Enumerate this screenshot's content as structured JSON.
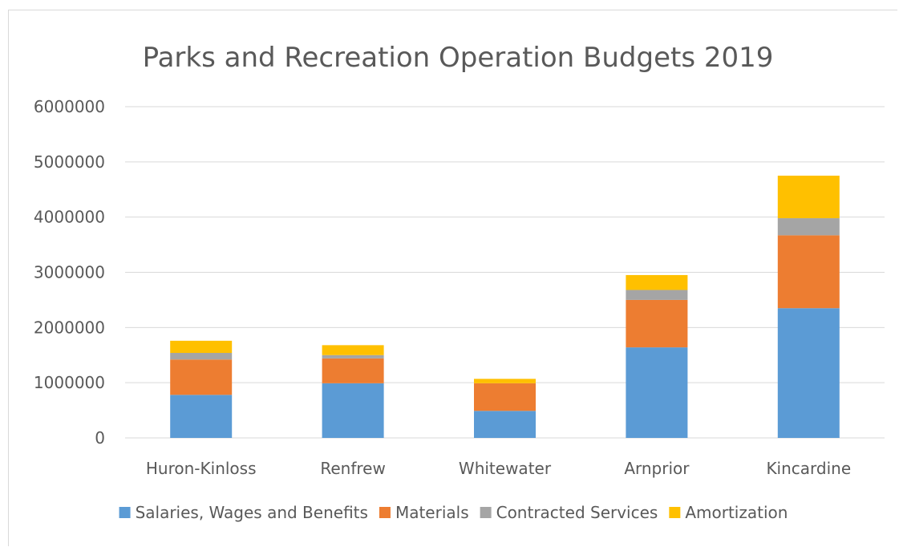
{
  "chart_data": {
    "type": "bar",
    "stacked": true,
    "title": "Parks and Recreation Operation Budgets 2019",
    "xlabel": "",
    "ylabel": "",
    "ylim": [
      0,
      6000000
    ],
    "yticks": [
      0,
      1000000,
      2000000,
      3000000,
      4000000,
      5000000,
      6000000
    ],
    "ytick_labels": [
      "0",
      "1000000",
      "2000000",
      "3000000",
      "4000000",
      "5000000",
      "6000000"
    ],
    "grid": true,
    "legend_position": "bottom",
    "categories": [
      "Huron-Kinloss",
      "Renfrew",
      "Whitewater",
      "Arnprior",
      "Kincardine"
    ],
    "series": [
      {
        "name": "Salaries, Wages and Benefits",
        "color": "#5b9bd5",
        "values": [
          780000,
          990000,
          490000,
          1640000,
          2350000
        ]
      },
      {
        "name": "Materials",
        "color": "#ed7d31",
        "values": [
          640000,
          450000,
          500000,
          860000,
          1320000
        ]
      },
      {
        "name": "Contracted Services",
        "color": "#a5a5a5",
        "values": [
          120000,
          60000,
          0,
          180000,
          310000
        ]
      },
      {
        "name": "Amortization",
        "color": "#ffc000",
        "values": [
          220000,
          180000,
          80000,
          270000,
          770000
        ]
      }
    ]
  }
}
